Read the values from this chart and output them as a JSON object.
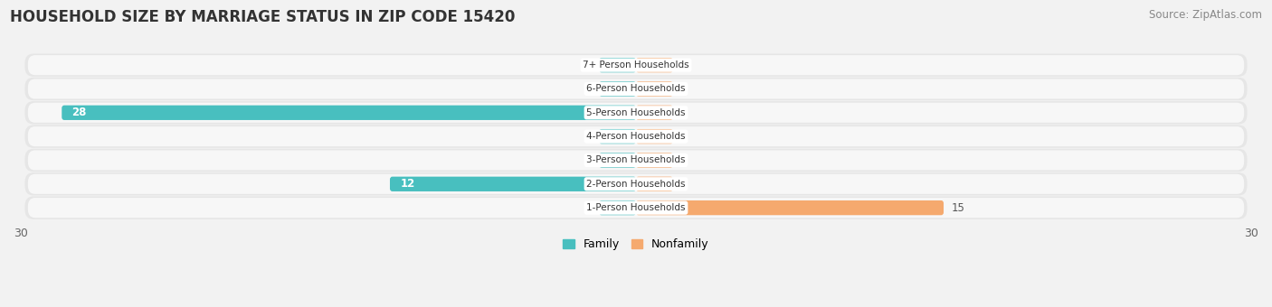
{
  "title": "HOUSEHOLD SIZE BY MARRIAGE STATUS IN ZIP CODE 15420",
  "source": "Source: ZipAtlas.com",
  "categories": [
    "7+ Person Households",
    "6-Person Households",
    "5-Person Households",
    "4-Person Households",
    "3-Person Households",
    "2-Person Households",
    "1-Person Households"
  ],
  "family_values": [
    0,
    0,
    28,
    0,
    0,
    12,
    0
  ],
  "nonfamily_values": [
    0,
    0,
    0,
    0,
    0,
    0,
    15
  ],
  "family_color": "#48BFBF",
  "nonfamily_color": "#F5A96E",
  "xlim": [
    -30,
    30
  ],
  "xtick_vals": [
    -30,
    30
  ],
  "background_color": "#f2f2f2",
  "row_bg_color": "#e6e6e6",
  "row_inner_color": "#f7f7f7",
  "label_bg_color": "#ffffff",
  "title_fontsize": 12,
  "source_fontsize": 8.5,
  "bar_height": 0.62,
  "stub_size": 1.8,
  "figsize": [
    14.06,
    3.4
  ]
}
